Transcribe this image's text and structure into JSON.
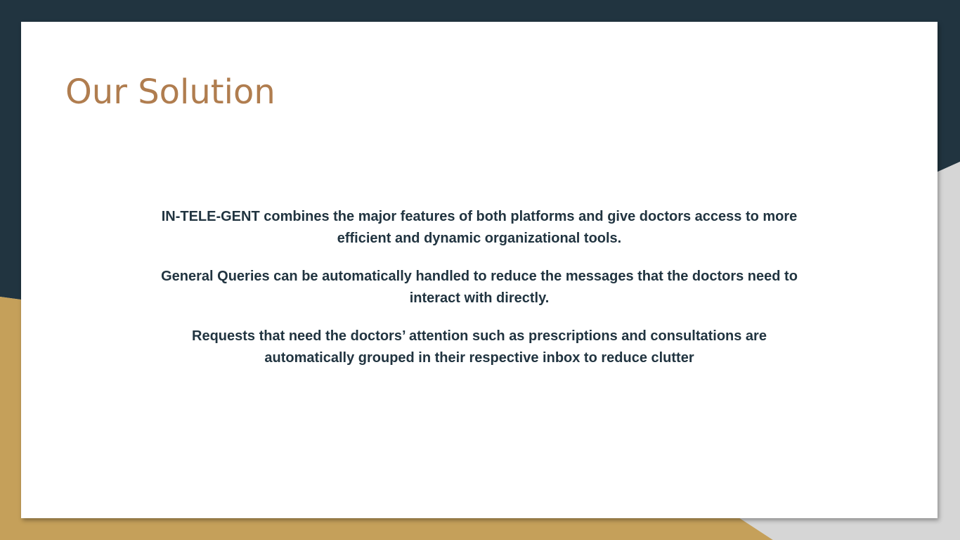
{
  "slide": {
    "title": "Our Solution",
    "paragraphs": [
      "IN-TELE-GENT combines the major features of both platforms and give doctors access to more efficient and dynamic organizational tools.",
      "General Queries can be automatically handled to reduce the messages that the doctors need to interact with directly.",
      "Requests that need the doctors’ attention such as prescriptions and consultations are automatically grouped in their respective inbox to reduce clutter"
    ]
  },
  "colors": {
    "dark_navy": "#213440",
    "gold": "#c5a05a",
    "light_gray": "#d6d6d6",
    "title": "#b07d4f",
    "body_text": "#213440"
  }
}
